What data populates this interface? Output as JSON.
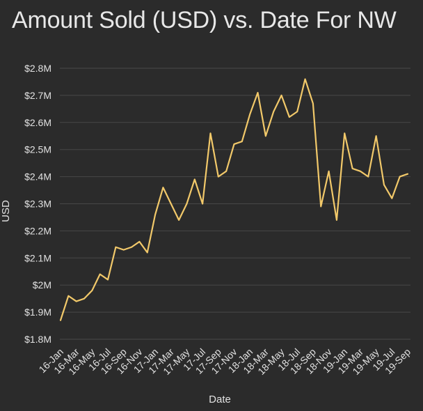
{
  "chart_data": {
    "type": "line",
    "title": "Amount Sold (USD) vs. Date For NW",
    "xlabel": "Date",
    "ylabel": "USD",
    "ylim": [
      1.8,
      2.8
    ],
    "y_ticks": [
      1.8,
      1.9,
      2.0,
      2.1,
      2.2,
      2.3,
      2.4,
      2.5,
      2.6,
      2.7,
      2.8
    ],
    "y_tick_labels": [
      "$1.8M",
      "$1.9M",
      "$2M",
      "$2.1M",
      "$2.2M",
      "$2.3M",
      "$2.4M",
      "$2.5M",
      "$2.6M",
      "$2.7M",
      "$2.8M"
    ],
    "y_unit": "USD millions",
    "x_tick_labels": [
      "16-Jan",
      "16-Mar",
      "16-May",
      "16-Jul",
      "16-Sep",
      "16-Nov",
      "17-Jan",
      "17-Mar",
      "17-May",
      "17-Jul",
      "17-Sep",
      "17-Nov",
      "18-Jan",
      "18-Mar",
      "18-May",
      "18-Jul",
      "18-Sep",
      "18-Nov",
      "19-Jan",
      "19-Mar",
      "19-May",
      "19-Jul",
      "19-Sep"
    ],
    "grid": "horizontal",
    "line_color": "#f2c96a",
    "background_color": "#2b2b2b",
    "grid_color": "#484848",
    "text_color": "#e2e2e2",
    "series": [
      {
        "x": [
          "16-Jan",
          "16-Feb",
          "16-Mar",
          "16-Apr",
          "16-May",
          "16-Jun",
          "16-Jul",
          "16-Aug",
          "16-Sep",
          "16-Oct",
          "16-Nov",
          "16-Dec",
          "17-Jan",
          "17-Feb",
          "17-Mar",
          "17-Apr",
          "17-May",
          "17-Jun",
          "17-Jul",
          "17-Aug",
          "17-Sep",
          "17-Oct",
          "17-Nov",
          "17-Dec",
          "18-Jan",
          "18-Feb",
          "18-Mar",
          "18-Apr",
          "18-May",
          "18-Jun",
          "18-Jul",
          "18-Aug",
          "18-Sep",
          "18-Oct",
          "18-Nov",
          "18-Dec",
          "19-Jan",
          "19-Feb",
          "19-Mar",
          "19-Apr",
          "19-May",
          "19-Jun",
          "19-Jul",
          "19-Aug",
          "19-Sep"
        ],
        "values": [
          1.87,
          1.96,
          1.94,
          1.95,
          1.98,
          2.04,
          2.02,
          2.14,
          2.13,
          2.14,
          2.16,
          2.12,
          2.26,
          2.36,
          2.3,
          2.24,
          2.3,
          2.39,
          2.3,
          2.56,
          2.4,
          2.42,
          2.52,
          2.53,
          2.63,
          2.71,
          2.55,
          2.64,
          2.7,
          2.62,
          2.64,
          2.76,
          2.67,
          2.29,
          2.42,
          2.24,
          2.56,
          2.43,
          2.42,
          2.4,
          2.55,
          2.37,
          2.32,
          2.4,
          2.41
        ]
      }
    ]
  }
}
